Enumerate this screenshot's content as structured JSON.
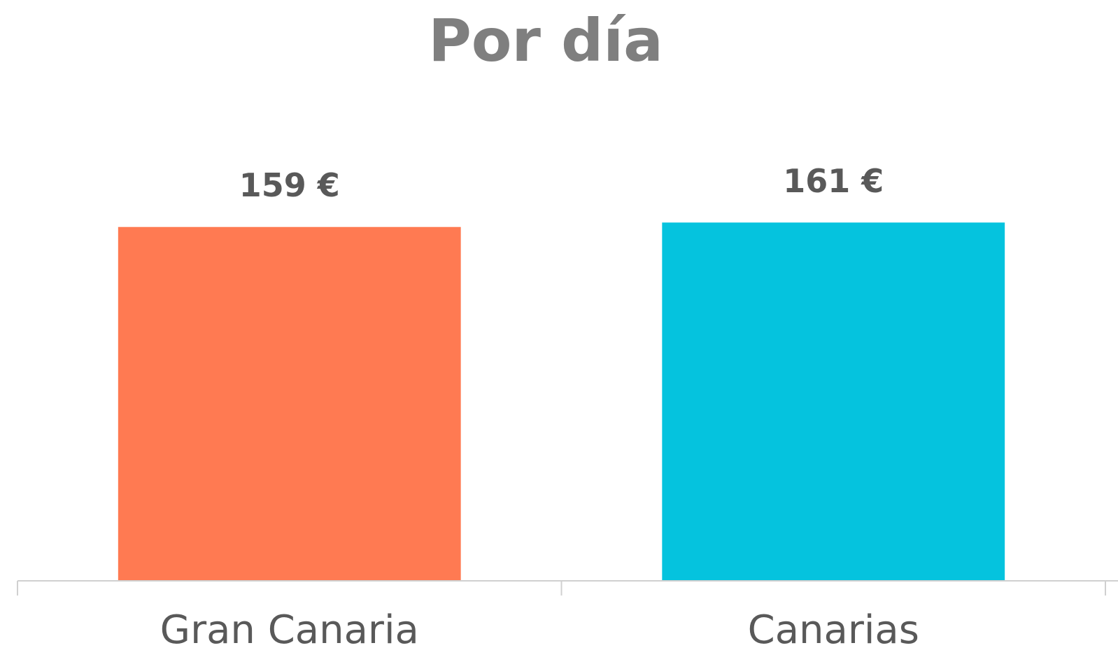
{
  "chart_data": {
    "type": "bar",
    "title": "Por día",
    "categories": [
      "Gran Canaria",
      "Canarias"
    ],
    "values": [
      159,
      161
    ],
    "value_labels": [
      "159 €",
      "161 €"
    ],
    "colors": [
      "#ff7a52",
      "#05c3de"
    ],
    "ylim": [
      0,
      180
    ]
  }
}
